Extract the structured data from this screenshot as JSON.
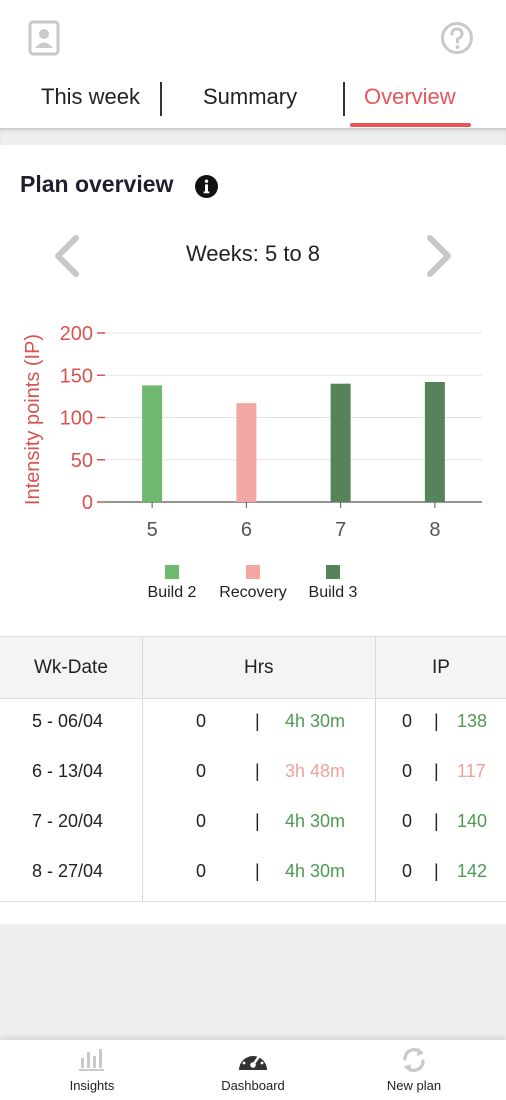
{
  "header": {
    "profile_icon": "profile-card-icon",
    "help_icon": "question-circle-icon"
  },
  "tabs": [
    {
      "label": "This week",
      "active": false
    },
    {
      "label": "Summary",
      "active": false
    },
    {
      "label": "Overview",
      "active": true
    }
  ],
  "colors": {
    "accent": "#e8555a",
    "build2": "#70b86f",
    "recovery": "#f4a6a3",
    "build3": "#57835a",
    "axis_text": "#d9534f"
  },
  "plan": {
    "title": "Plan overview",
    "weeks_label": "Weeks: 5 to 8"
  },
  "chart_data": {
    "type": "bar",
    "categories": [
      "5",
      "6",
      "7",
      "8"
    ],
    "values": [
      138,
      117,
      140,
      142
    ],
    "bar_phases": [
      "Build 2",
      "Recovery",
      "Build 3",
      "Build 3"
    ],
    "bar_colors": [
      "#70b86f",
      "#f4a6a3",
      "#57835a",
      "#57835a"
    ],
    "ylabel": "Intensity points (IP)",
    "xlabel": "",
    "ylim": [
      0,
      200
    ],
    "yticks": [
      0,
      50,
      100,
      150,
      200
    ],
    "grid": true,
    "legend": {
      "placement": "bottom",
      "entries": [
        {
          "name": "Build 2",
          "color": "#70b86f"
        },
        {
          "name": "Recovery",
          "color": "#f4a6a3"
        },
        {
          "name": "Build 3",
          "color": "#57835a"
        }
      ]
    }
  },
  "table": {
    "headers": [
      "Wk-Date",
      "Hrs",
      "IP"
    ],
    "rows": [
      {
        "wk": "5 - 06/04",
        "hrs_done": "0",
        "sep": "|",
        "hrs_plan": "4h 30m",
        "ip_done": "0",
        "ip_plan": "138",
        "tone": "green"
      },
      {
        "wk": "6 - 13/04",
        "hrs_done": "0",
        "sep": "|",
        "hrs_plan": "3h 48m",
        "ip_done": "0",
        "ip_plan": "117",
        "tone": "pink"
      },
      {
        "wk": "7 - 20/04",
        "hrs_done": "0",
        "sep": "|",
        "hrs_plan": "4h 30m",
        "ip_done": "0",
        "ip_plan": "140",
        "tone": "green"
      },
      {
        "wk": "8 - 27/04",
        "hrs_done": "0",
        "sep": "|",
        "hrs_plan": "4h 30m",
        "ip_done": "0",
        "ip_plan": "142",
        "tone": "green"
      }
    ]
  },
  "bottom_nav": [
    {
      "label": "Insights",
      "icon": "bar-chart-icon"
    },
    {
      "label": "Dashboard",
      "icon": "speedometer-icon"
    },
    {
      "label": "New plan",
      "icon": "refresh-icon"
    }
  ]
}
